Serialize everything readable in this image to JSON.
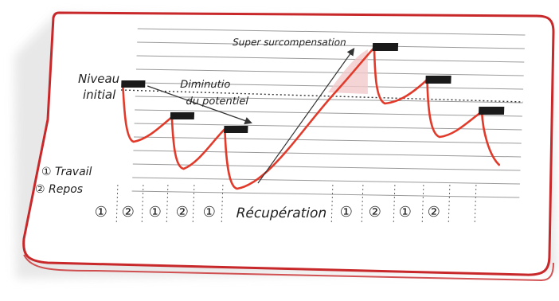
{
  "labels": {
    "niveau_line1": "Niveau",
    "niveau_line2": "initial",
    "diminution_line1": "Diminutio",
    "diminution_line2": "du potentiel",
    "super": "Super surcompensation",
    "travail": "① Travail",
    "repos": "② Repos",
    "recuperation": "Récupération"
  },
  "phases_left": [
    "①",
    "②",
    "①",
    "②",
    "①"
  ],
  "phases_right": [
    "①",
    "②",
    "①",
    "②"
  ],
  "colors": {
    "curve": "#e23a2a",
    "frame": "#c8282a",
    "grid": "#9a9a9a",
    "block": "#1a1a1a",
    "shade": "#f3c9cc"
  }
}
